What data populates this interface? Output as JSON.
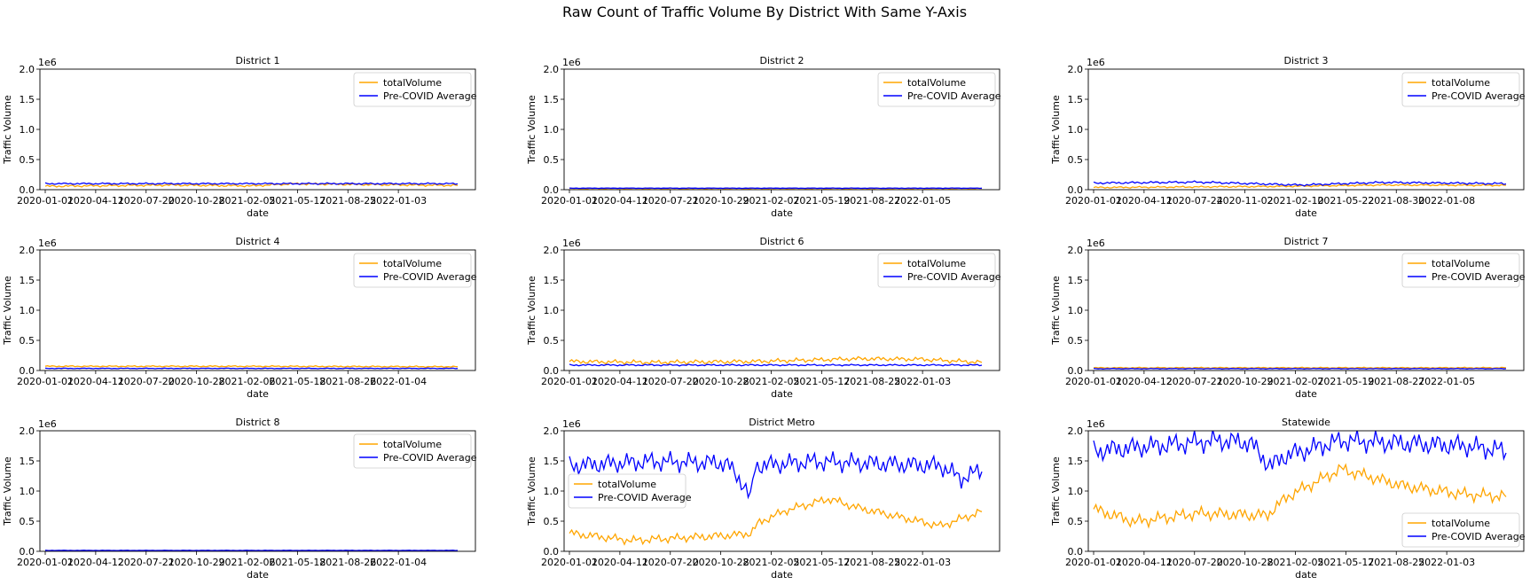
{
  "figure": {
    "title": "Raw Count of Traffic Volume By District With Same Y-Axis"
  },
  "colors": {
    "totalVolume": "#FFA500",
    "precovid": "#0000FF"
  },
  "chart_data": [
    {
      "type": "line",
      "title": "District 1",
      "xlabel": "date",
      "ylabel": "Traffic Volume",
      "y_offset_label": "1e6",
      "ylim": [
        0,
        2.0
      ],
      "yticks": [
        "0.0",
        "0.5",
        "1.0",
        "1.5",
        "2.0"
      ],
      "xticks": [
        "2020-01-01",
        "2020-04-11",
        "2020-07-20",
        "2020-10-28",
        "2021-02-05",
        "2021-05-17",
        "2021-08-25",
        "2022-01-03"
      ],
      "legend_loc": "upper right",
      "series": [
        {
          "name": "totalVolume",
          "level": 0.07,
          "amp": 0.02,
          "trend": [
            [
              0,
              0.8
            ],
            [
              0.3,
              1.1
            ],
            [
              0.5,
              0.9
            ],
            [
              0.6,
              1.4
            ],
            [
              1,
              1.0
            ]
          ]
        },
        {
          "name": "Pre-COVID Average",
          "level": 0.1,
          "amp": 0.015,
          "trend": [
            [
              0,
              1
            ],
            [
              1,
              1
            ]
          ]
        }
      ]
    },
    {
      "type": "line",
      "title": "District 2",
      "xlabel": "date",
      "ylabel": "Traffic Volume",
      "y_offset_label": "1e6",
      "ylim": [
        0,
        2.0
      ],
      "yticks": [
        "0.0",
        "0.5",
        "1.0",
        "1.5",
        "2.0"
      ],
      "xticks": [
        "2020-01-01",
        "2020-04-11",
        "2020-07-21",
        "2020-10-29",
        "2021-02-07",
        "2021-05-19",
        "2021-08-27",
        "2022-01-05"
      ],
      "legend_loc": "upper right",
      "series": [
        {
          "name": "totalVolume",
          "level": 0.02,
          "amp": 0.005,
          "trend": [
            [
              0,
              1
            ],
            [
              1,
              1
            ]
          ]
        },
        {
          "name": "Pre-COVID Average",
          "level": 0.025,
          "amp": 0.004,
          "trend": [
            [
              0,
              1
            ],
            [
              1,
              1
            ]
          ]
        }
      ]
    },
    {
      "type": "line",
      "title": "District 3",
      "xlabel": "date",
      "ylabel": "Traffic Volume",
      "y_offset_label": "1e6",
      "ylim": [
        0,
        2.0
      ],
      "yticks": [
        "0.0",
        "0.5",
        "1.0",
        "1.5",
        "2.0"
      ],
      "xticks": [
        "2020-01-01",
        "2020-04-11",
        "2020-07-24",
        "2020-11-02",
        "2021-02-10",
        "2021-05-22",
        "2021-08-30",
        "2022-01-08"
      ],
      "legend_loc": "upper right",
      "series": [
        {
          "name": "totalVolume",
          "level": 0.06,
          "amp": 0.015,
          "trend": [
            [
              0,
              0.6
            ],
            [
              0.45,
              0.9
            ],
            [
              0.7,
              1.3
            ],
            [
              1,
              1.2
            ]
          ]
        },
        {
          "name": "Pre-COVID Average",
          "level": 0.11,
          "amp": 0.02,
          "trend": [
            [
              0,
              1
            ],
            [
              0.25,
              1.15
            ],
            [
              0.5,
              0.7
            ],
            [
              0.7,
              1.1
            ],
            [
              1,
              0.9
            ]
          ]
        }
      ]
    },
    {
      "type": "line",
      "title": "District 4",
      "xlabel": "date",
      "ylabel": "Traffic Volume",
      "y_offset_label": "1e6",
      "ylim": [
        0,
        2.0
      ],
      "yticks": [
        "0.0",
        "0.5",
        "1.0",
        "1.5",
        "2.0"
      ],
      "xticks": [
        "2020-01-01",
        "2020-04-11",
        "2020-07-20",
        "2020-10-28",
        "2021-02-06",
        "2021-05-18",
        "2021-08-26",
        "2022-01-04"
      ],
      "legend_loc": "upper right",
      "series": [
        {
          "name": "totalVolume",
          "level": 0.07,
          "amp": 0.012,
          "trend": [
            [
              0,
              1
            ],
            [
              0.5,
              1.0
            ],
            [
              1,
              0.9
            ]
          ]
        },
        {
          "name": "Pre-COVID Average",
          "level": 0.035,
          "amp": 0.006,
          "trend": [
            [
              0,
              1
            ],
            [
              1,
              1
            ]
          ]
        }
      ]
    },
    {
      "type": "line",
      "title": "District 6",
      "xlabel": "date",
      "ylabel": "Traffic Volume",
      "y_offset_label": "1e6",
      "ylim": [
        0,
        2.0
      ],
      "yticks": [
        "0.0",
        "0.5",
        "1.0",
        "1.5",
        "2.0"
      ],
      "xticks": [
        "2020-01-01",
        "2020-04-11",
        "2020-07-20",
        "2020-10-28",
        "2021-02-05",
        "2021-05-17",
        "2021-08-25",
        "2022-01-03"
      ],
      "legend_loc": "upper right",
      "series": [
        {
          "name": "totalVolume",
          "level": 0.15,
          "amp": 0.04,
          "trend": [
            [
              0,
              1
            ],
            [
              0.2,
              0.9
            ],
            [
              0.45,
              1.0
            ],
            [
              0.7,
              1.3
            ],
            [
              0.85,
              1.25
            ],
            [
              1,
              0.9
            ]
          ]
        },
        {
          "name": "Pre-COVID Average",
          "level": 0.09,
          "amp": 0.015,
          "trend": [
            [
              0,
              1
            ],
            [
              1,
              1
            ]
          ]
        }
      ]
    },
    {
      "type": "line",
      "title": "District 7",
      "xlabel": "date",
      "ylabel": "Traffic Volume",
      "y_offset_label": "1e6",
      "ylim": [
        0,
        2.0
      ],
      "yticks": [
        "0.0",
        "0.5",
        "1.0",
        "1.5",
        "2.0"
      ],
      "xticks": [
        "2020-01-01",
        "2020-04-12",
        "2020-07-21",
        "2020-10-29",
        "2021-02-07",
        "2021-05-19",
        "2021-08-27",
        "2022-01-05"
      ],
      "legend_loc": "upper right",
      "series": [
        {
          "name": "totalVolume",
          "level": 0.045,
          "amp": 0.01,
          "trend": [
            [
              0,
              1
            ],
            [
              1,
              1
            ]
          ]
        },
        {
          "name": "Pre-COVID Average",
          "level": 0.03,
          "amp": 0.006,
          "trend": [
            [
              0,
              1
            ],
            [
              1,
              1
            ]
          ]
        }
      ]
    },
    {
      "type": "line",
      "title": "District 8",
      "xlabel": "date",
      "ylabel": "Traffic Volume",
      "y_offset_label": "1e6",
      "ylim": [
        0,
        2.0
      ],
      "yticks": [
        "0.0",
        "0.5",
        "1.0",
        "1.5",
        "2.0"
      ],
      "xticks": [
        "2020-01-01",
        "2020-04-12",
        "2020-07-21",
        "2020-10-29",
        "2021-02-06",
        "2021-05-18",
        "2021-08-26",
        "2022-01-04"
      ],
      "legend_loc": "upper right",
      "series": [
        {
          "name": "totalVolume",
          "level": 0.012,
          "amp": 0.003,
          "trend": [
            [
              0,
              1
            ],
            [
              1,
              1
            ]
          ]
        },
        {
          "name": "Pre-COVID Average",
          "level": 0.015,
          "amp": 0.003,
          "trend": [
            [
              0,
              1
            ],
            [
              1,
              1
            ]
          ]
        }
      ]
    },
    {
      "type": "line",
      "title": "District Metro",
      "xlabel": "date",
      "ylabel": "Traffic Volume",
      "y_offset_label": "1e6",
      "ylim": [
        0,
        2.0
      ],
      "yticks": [
        "0.0",
        "0.5",
        "1.0",
        "1.5",
        "2.0"
      ],
      "xticks": [
        "2020-01-01",
        "2020-04-11",
        "2020-07-20",
        "2020-10-28",
        "2021-02-05",
        "2021-05-17",
        "2021-08-25",
        "2022-01-03"
      ],
      "legend_loc": "center left",
      "series": [
        {
          "name": "totalVolume",
          "level": 0.3,
          "amp": 0.08,
          "trend": [
            [
              0,
              1.0
            ],
            [
              0.15,
              0.6
            ],
            [
              0.4,
              0.9
            ],
            [
              0.44,
              1.0
            ],
            [
              0.46,
              1.6
            ],
            [
              0.53,
              2.3
            ],
            [
              0.63,
              2.9
            ],
            [
              0.7,
              2.4
            ],
            [
              0.8,
              1.9
            ],
            [
              0.9,
              1.4
            ],
            [
              1,
              2.2
            ]
          ]
        },
        {
          "name": "Pre-COVID Average",
          "level": 1.42,
          "amp": 0.18,
          "trend": [
            [
              0,
              1
            ],
            [
              0.2,
              1.05
            ],
            [
              0.38,
              1.03
            ],
            [
              0.42,
              0.8
            ],
            [
              0.44,
              0.6
            ],
            [
              0.45,
              1.0
            ],
            [
              0.6,
              1.05
            ],
            [
              0.9,
              1.0
            ],
            [
              0.95,
              0.85
            ],
            [
              1,
              0.95
            ]
          ]
        }
      ]
    },
    {
      "type": "line",
      "title": "Statewide",
      "xlabel": "date",
      "ylabel": "Traffic Volume",
      "y_offset_label": "1e6",
      "ylim": [
        0,
        2.0
      ],
      "yticks": [
        "0.0",
        "0.5",
        "1.0",
        "1.5",
        "2.0"
      ],
      "xticks": [
        "2020-01-01",
        "2020-04-11",
        "2020-07-20",
        "2020-10-28",
        "2021-02-05",
        "2021-05-17",
        "2021-08-25",
        "2022-01-03"
      ],
      "legend_loc": "lower right",
      "series": [
        {
          "name": "totalVolume",
          "level": 0.7,
          "amp": 0.12,
          "trend": [
            [
              0,
              1
            ],
            [
              0.1,
              0.7
            ],
            [
              0.25,
              0.9
            ],
            [
              0.42,
              0.85
            ],
            [
              0.47,
              1.3
            ],
            [
              0.6,
              1.95
            ],
            [
              0.75,
              1.55
            ],
            [
              0.9,
              1.35
            ],
            [
              1,
              1.3
            ]
          ]
        },
        {
          "name": "Pre-COVID Average",
          "level": 1.75,
          "amp": 0.2,
          "trend": [
            [
              0,
              0.95
            ],
            [
              0.15,
              1.0
            ],
            [
              0.3,
              1.05
            ],
            [
              0.38,
              1.03
            ],
            [
              0.43,
              0.8
            ],
            [
              0.46,
              0.9
            ],
            [
              0.6,
              1.05
            ],
            [
              0.9,
              1.0
            ],
            [
              1,
              0.95
            ]
          ]
        }
      ]
    }
  ]
}
